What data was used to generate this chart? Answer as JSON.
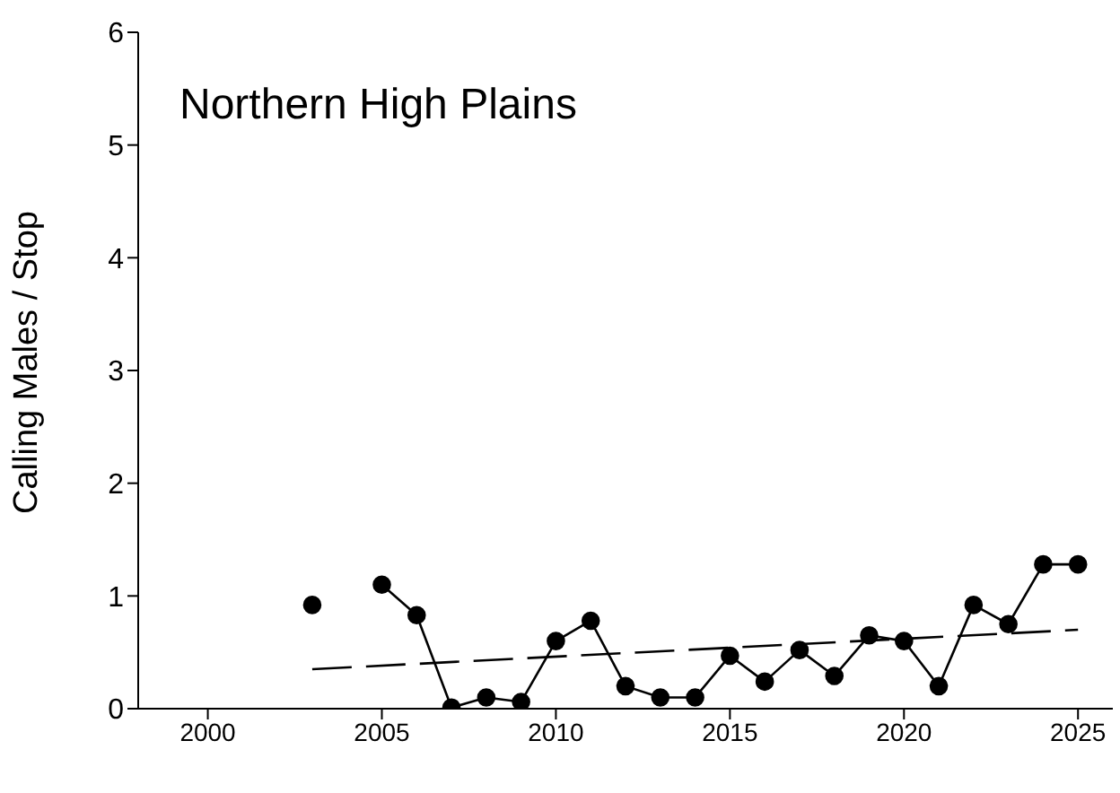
{
  "chart_data": {
    "type": "line",
    "title": "Northern High Plains",
    "ylabel": "Calling Males / Stop",
    "x": [
      2003,
      2004,
      2005,
      2006,
      2007,
      2008,
      2009,
      2010,
      2011,
      2012,
      2013,
      2014,
      2015,
      2016,
      2017,
      2018,
      2019,
      2020,
      2021,
      2022,
      2023,
      2024,
      2025
    ],
    "series": [
      {
        "color": "#000000",
        "values": [
          0.92,
          null,
          1.1,
          0.83,
          0.01,
          0.1,
          0.06,
          0.6,
          0.78,
          0.2,
          0.1,
          0.1,
          0.47,
          0.24,
          0.52,
          0.29,
          0.65,
          0.6,
          0.2,
          0.92,
          0.75,
          1.28,
          1.28
        ],
        "marker": "circle",
        "line_style": "solid"
      },
      {
        "type": "line",
        "color": "#000000",
        "x": [
          2003,
          2025
        ],
        "values": [
          0.35,
          0.7
        ],
        "marker": "none",
        "line_style": "dashed"
      }
    ],
    "xlim": [
      1998,
      2026
    ],
    "xticks": [
      2000,
      2005,
      2010,
      2015,
      2020,
      2025
    ],
    "ylim": [
      0,
      6
    ],
    "yticks": [
      0,
      1,
      2,
      3,
      4,
      5,
      6
    ],
    "grid": false
  }
}
